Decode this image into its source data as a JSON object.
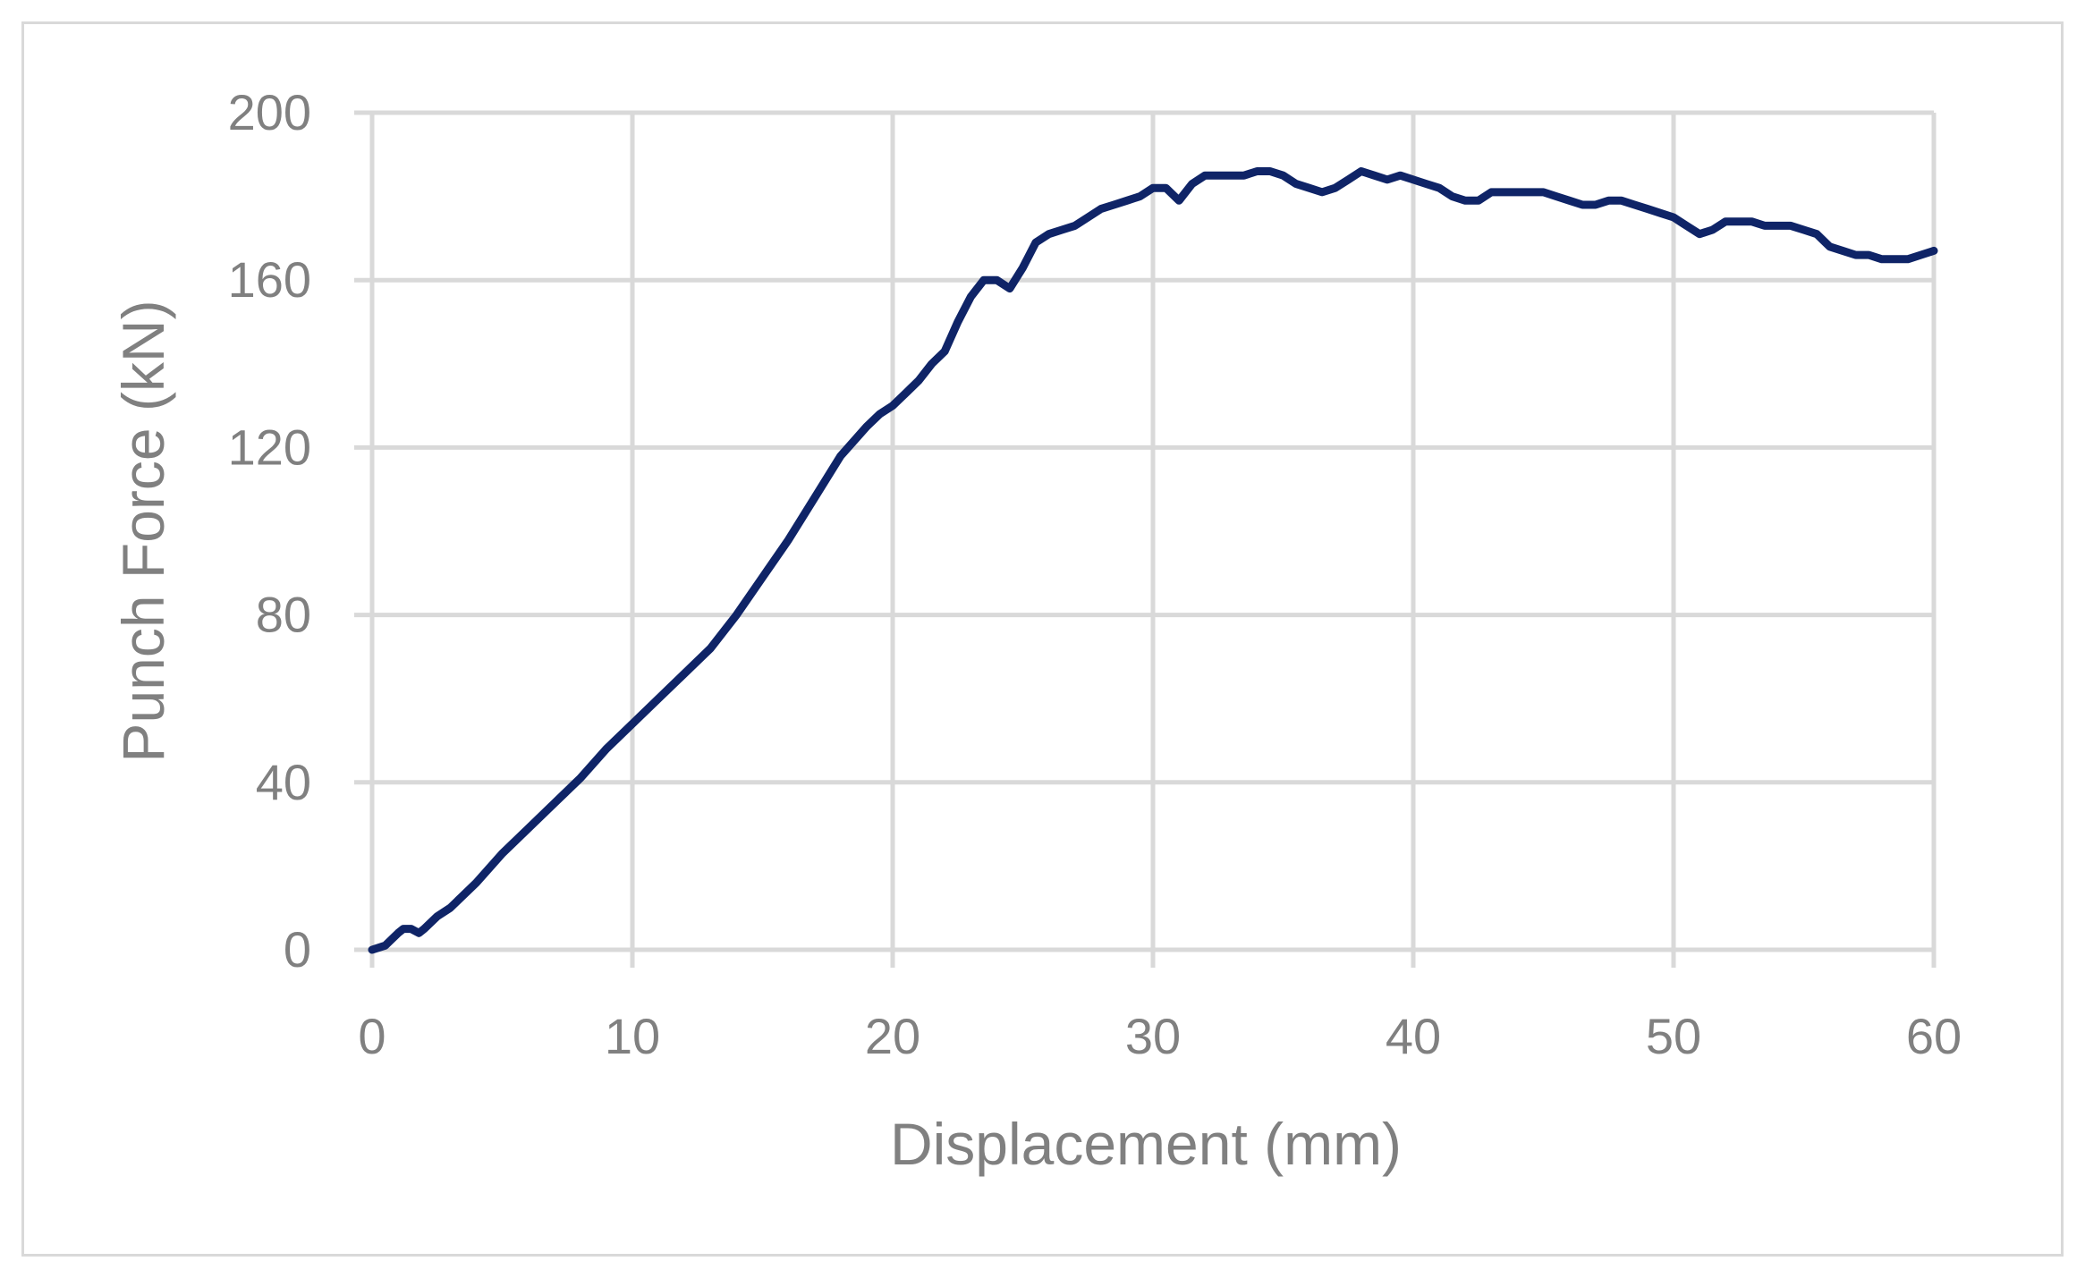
{
  "chart_data": {
    "type": "line",
    "xlabel": "Displacement (mm)",
    "ylabel": "Punch Force (kN)",
    "xlim": [
      0,
      60
    ],
    "ylim": [
      0,
      200
    ],
    "x_ticks": [
      0,
      10,
      20,
      30,
      40,
      50,
      60
    ],
    "y_ticks": [
      0,
      40,
      80,
      120,
      160,
      200
    ],
    "grid": true,
    "legend": "none",
    "colors": {
      "series": "#0f2467",
      "grid": "#d9d9d9",
      "text": "#808080",
      "frame": "#d9d9d9"
    },
    "series": [
      {
        "x": [
          0,
          0.5,
          1,
          1.2,
          1.5,
          1.8,
          2,
          2.5,
          3,
          4,
          5,
          6,
          7,
          8,
          9,
          10,
          11,
          12,
          13,
          14,
          15,
          16,
          17,
          18,
          19,
          19.5,
          20,
          20.5,
          21,
          21.5,
          22,
          22.5,
          23,
          23.5,
          24,
          24.5,
          25,
          25.5,
          26,
          26.5,
          27,
          27.5,
          28,
          28.5,
          29,
          29.5,
          30,
          30.5,
          31,
          31.5,
          32,
          32.5,
          33,
          33.5,
          34,
          34.5,
          35,
          35.5,
          36,
          36.5,
          37,
          37.5,
          38,
          38.5,
          39,
          39.5,
          40,
          40.5,
          41,
          41.5,
          42,
          42.5,
          43,
          43.5,
          44,
          44.5,
          45,
          45.5,
          46,
          46.5,
          47,
          47.5,
          48,
          48.5,
          49,
          49.5,
          50,
          50.5,
          51,
          51.5,
          52,
          52.5,
          53,
          53.5,
          54,
          54.5,
          55,
          55.5,
          56,
          56.5,
          57,
          57.5,
          58,
          58.5,
          59,
          59.5,
          60
        ],
        "y": [
          0,
          1,
          4,
          5,
          5,
          4,
          5,
          8,
          10,
          16,
          23,
          29,
          35,
          41,
          48,
          54,
          60,
          66,
          72,
          80,
          89,
          98,
          108,
          118,
          125,
          128,
          130,
          133,
          136,
          140,
          143,
          150,
          156,
          160,
          160,
          158,
          163,
          169,
          171,
          172,
          173,
          175,
          177,
          178,
          179,
          180,
          182,
          182,
          179,
          183,
          185,
          185,
          185,
          185,
          186,
          186,
          185,
          183,
          182,
          181,
          182,
          184,
          186,
          185,
          184,
          185,
          184,
          183,
          182,
          180,
          179,
          179,
          181,
          181,
          181,
          181,
          181,
          180,
          179,
          178,
          178,
          179,
          179,
          178,
          177,
          176,
          175,
          173,
          171,
          172,
          174,
          174,
          174,
          173,
          173,
          173,
          172,
          171,
          168,
          167,
          166,
          166,
          165,
          165,
          165,
          166,
          167
        ]
      }
    ]
  }
}
